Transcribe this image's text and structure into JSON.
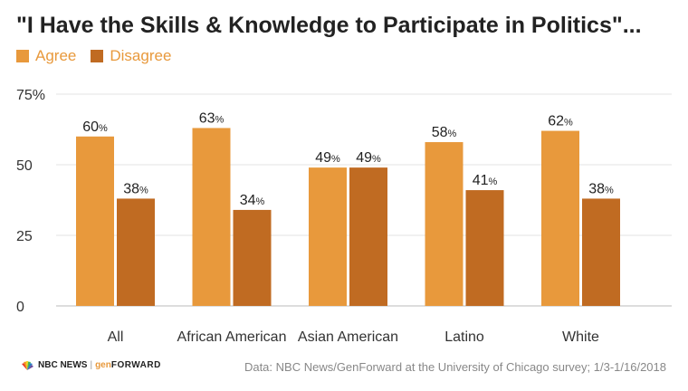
{
  "header": {
    "title": "\"I Have the Skills & Knowledge to Participate in Politics\"..."
  },
  "legend": {
    "items": [
      {
        "label": "Agree",
        "color": "#e8993c"
      },
      {
        "label": "Disagree",
        "color": "#c06b22"
      }
    ]
  },
  "footer": {
    "logo_nbc": "NBC NEWS",
    "logo_gen": "gen",
    "logo_forward": "FORWARD",
    "source": "Data: NBC News/GenForward at the University of Chicago survey; 1/3-1/16/2018"
  },
  "chart_data": {
    "type": "bar",
    "categories": [
      "All",
      "African American",
      "Asian American",
      "Latino",
      "White"
    ],
    "series": [
      {
        "name": "Agree",
        "values": [
          60,
          63,
          49,
          58,
          62
        ],
        "color": "#e8993c"
      },
      {
        "name": "Disagree",
        "values": [
          38,
          34,
          49,
          41,
          38
        ],
        "color": "#c06b22"
      }
    ],
    "value_suffix": "%",
    "ylim": [
      0,
      75
    ],
    "yticks": [
      0,
      25,
      50,
      75
    ],
    "ytick_labels": [
      "0",
      "25",
      "50",
      "75%"
    ],
    "grid": true
  }
}
